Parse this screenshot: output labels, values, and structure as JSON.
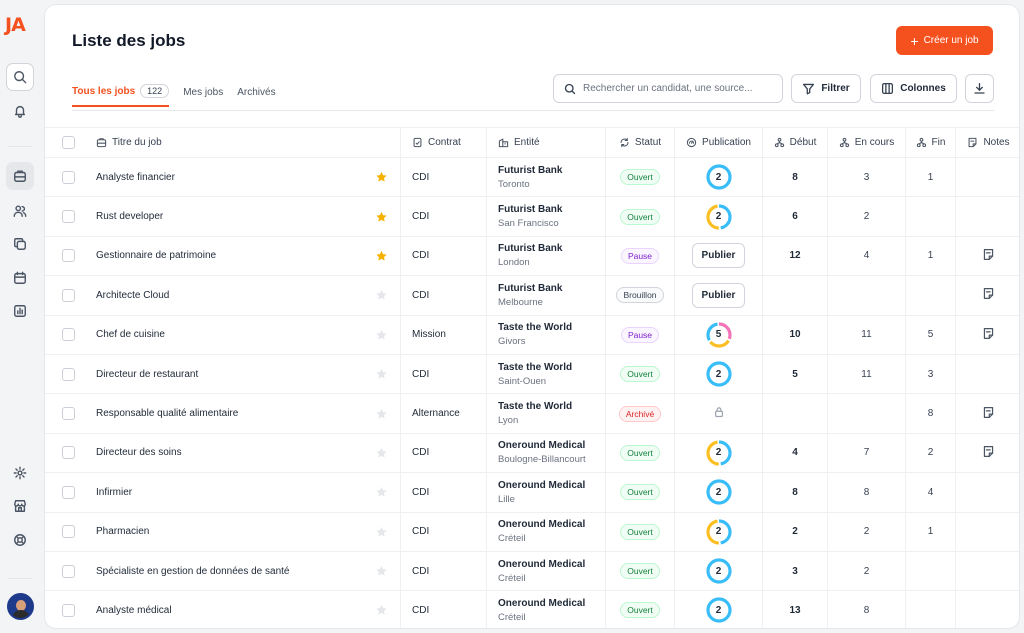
{
  "app": {
    "logo": "JA"
  },
  "colors": {
    "accent": "#f4511e",
    "star_on": "#f5b301",
    "star_off": "#e5e7eb",
    "donut_blue": "#38bdf8",
    "donut_yellow": "#fbbf24",
    "donut_pink": "#f472b6"
  },
  "sidebar": {
    "top": [
      {
        "name": "search-icon"
      },
      {
        "name": "bell-icon"
      }
    ],
    "nav": [
      {
        "name": "jobs-icon",
        "active": true
      },
      {
        "name": "users-icon"
      },
      {
        "name": "copy-icon"
      },
      {
        "name": "calendar-icon"
      },
      {
        "name": "chart-icon"
      }
    ],
    "bottom": [
      {
        "name": "gear-icon"
      },
      {
        "name": "store-icon"
      },
      {
        "name": "help-icon"
      }
    ]
  },
  "header": {
    "title": "Liste des jobs",
    "create_label": "Créer un job"
  },
  "tabs": [
    {
      "label": "Tous les jobs",
      "count": "122",
      "active": true
    },
    {
      "label": "Mes jobs"
    },
    {
      "label": "Archivés"
    }
  ],
  "toolbar": {
    "search_placeholder": "Rechercher un candidat, une source...",
    "filter_label": "Filtrer",
    "columns_label": "Colonnes"
  },
  "columns": {
    "title": "Titre du job",
    "contrat": "Contrat",
    "entite": "Entité",
    "statut": "Statut",
    "publication": "Publication",
    "debut": "Début",
    "en_cours": "En cours",
    "fin": "Fin",
    "notes": "Notes"
  },
  "publish_label": "Publier",
  "rows": [
    {
      "title": "Analyste financier",
      "starred": true,
      "contrat": "CDI",
      "entity": "Futurist Bank",
      "location": "Toronto",
      "status": "Ouvert",
      "status_type": "ouvert",
      "pub": {
        "type": "donut",
        "value": "2",
        "colors": [
          "#38bdf8"
        ]
      },
      "debut": "8",
      "en_cours": "3",
      "fin": "1",
      "note": false
    },
    {
      "title": "Rust developer",
      "starred": true,
      "contrat": "CDI",
      "entity": "Futurist Bank",
      "location": "San Francisco",
      "status": "Ouvert",
      "status_type": "ouvert",
      "pub": {
        "type": "donut",
        "value": "2",
        "colors": [
          "#38bdf8",
          "#fbbf24"
        ]
      },
      "debut": "6",
      "en_cours": "2",
      "fin": "",
      "note": false
    },
    {
      "title": "Gestionnaire de patrimoine",
      "starred": true,
      "contrat": "CDI",
      "entity": "Futurist Bank",
      "location": "London",
      "status": "Pause",
      "status_type": "pause",
      "pub": {
        "type": "button"
      },
      "debut": "12",
      "en_cours": "4",
      "fin": "1",
      "note": true
    },
    {
      "title": "Architecte Cloud",
      "starred": false,
      "contrat": "CDI",
      "entity": "Futurist Bank",
      "location": "Melbourne",
      "status": "Brouillon",
      "status_type": "brouillon",
      "pub": {
        "type": "button"
      },
      "debut": "",
      "en_cours": "",
      "fin": "",
      "note": true
    },
    {
      "title": "Chef de cuisine",
      "starred": false,
      "contrat": "Mission",
      "entity": "Taste the World",
      "location": "Givors",
      "status": "Pause",
      "status_type": "pause",
      "pub": {
        "type": "donut",
        "value": "5",
        "colors": [
          "#f472b6",
          "#fbbf24",
          "#38bdf8"
        ]
      },
      "debut": "10",
      "en_cours": "11",
      "fin": "5",
      "note": true
    },
    {
      "title": "Directeur de restaurant",
      "starred": false,
      "contrat": "CDI",
      "entity": "Taste the World",
      "location": "Saint-Ouen",
      "status": "Ouvert",
      "status_type": "ouvert",
      "pub": {
        "type": "donut",
        "value": "2",
        "colors": [
          "#38bdf8"
        ]
      },
      "debut": "5",
      "en_cours": "11",
      "fin": "3",
      "note": false
    },
    {
      "title": "Responsable qualité alimentaire",
      "starred": false,
      "contrat": "Alternance",
      "entity": "Taste the World",
      "location": "Lyon",
      "status": "Archivé",
      "status_type": "archive",
      "pub": {
        "type": "lock"
      },
      "debut": "",
      "en_cours": "",
      "fin": "8",
      "note": true
    },
    {
      "title": "Directeur des soins",
      "starred": false,
      "contrat": "CDI",
      "entity": "Oneround Medical",
      "location": "Boulogne-Billancourt",
      "status": "Ouvert",
      "status_type": "ouvert",
      "pub": {
        "type": "donut",
        "value": "2",
        "colors": [
          "#38bdf8",
          "#fbbf24"
        ]
      },
      "debut": "4",
      "en_cours": "7",
      "fin": "2",
      "note": true
    },
    {
      "title": "Infirmier",
      "starred": false,
      "contrat": "CDI",
      "entity": "Oneround Medical",
      "location": "Lille",
      "status": "Ouvert",
      "status_type": "ouvert",
      "pub": {
        "type": "donut",
        "value": "2",
        "colors": [
          "#38bdf8"
        ]
      },
      "debut": "8",
      "en_cours": "8",
      "fin": "4",
      "note": false
    },
    {
      "title": "Pharmacien",
      "starred": false,
      "contrat": "CDI",
      "entity": "Oneround Medical",
      "location": "Créteil",
      "status": "Ouvert",
      "status_type": "ouvert",
      "pub": {
        "type": "donut",
        "value": "2",
        "colors": [
          "#38bdf8",
          "#fbbf24"
        ]
      },
      "debut": "2",
      "en_cours": "2",
      "fin": "1",
      "note": false
    },
    {
      "title": "Spécialiste en gestion de données de santé",
      "starred": false,
      "contrat": "CDI",
      "entity": "Oneround Medical",
      "location": "Créteil",
      "status": "Ouvert",
      "status_type": "ouvert",
      "pub": {
        "type": "donut",
        "value": "2",
        "colors": [
          "#38bdf8"
        ]
      },
      "debut": "3",
      "en_cours": "2",
      "fin": "",
      "note": false
    },
    {
      "title": "Analyste médical",
      "starred": false,
      "contrat": "CDI",
      "entity": "Oneround Medical",
      "location": "Créteil",
      "status": "Ouvert",
      "status_type": "ouvert",
      "pub": {
        "type": "donut",
        "value": "2",
        "colors": [
          "#38bdf8"
        ]
      },
      "debut": "13",
      "en_cours": "8",
      "fin": "",
      "note": false
    }
  ]
}
